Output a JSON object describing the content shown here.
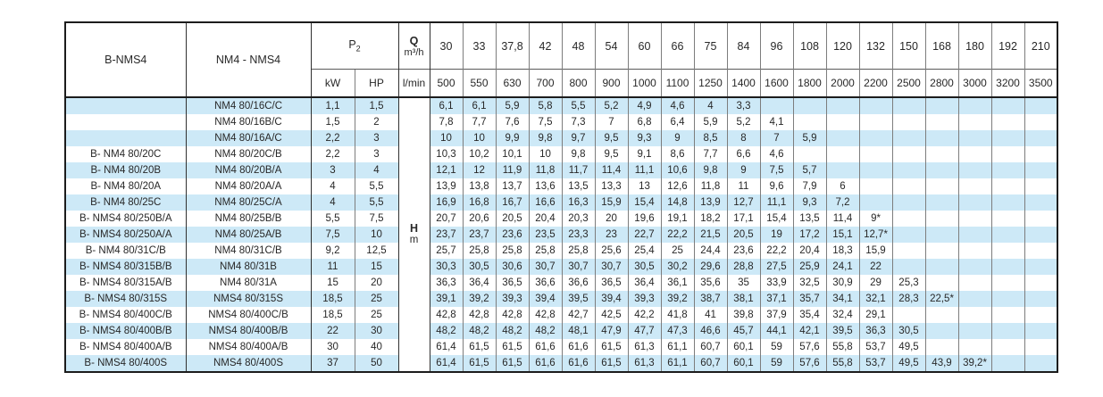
{
  "table": {
    "headers": {
      "col1": "B-NMS4",
      "col2": "NM4 - NMS4",
      "p2_base": "P",
      "p2_sub": "2",
      "kw": "kW",
      "hp": "HP",
      "q_symbol": "Q",
      "q_unit": "m³/h",
      "lmin": "l/min",
      "flow_m3h": [
        "30",
        "33",
        "37,8",
        "42",
        "48",
        "54",
        "60",
        "66",
        "75",
        "84",
        "96",
        "108",
        "120",
        "132",
        "150",
        "168",
        "180",
        "192",
        "210"
      ],
      "flow_lmin": [
        "500",
        "550",
        "630",
        "700",
        "800",
        "900",
        "1000",
        "1100",
        "1250",
        "1400",
        "1600",
        "1800",
        "2000",
        "2200",
        "2500",
        "2800",
        "3000",
        "3200",
        "3500"
      ]
    },
    "h_column": {
      "symbol": "H",
      "unit": "m"
    },
    "rows": [
      {
        "b_model": "",
        "model": "NM4 80/16C/C",
        "kw": "1,1",
        "hp": "1,5",
        "heads": [
          "6,1",
          "6,1",
          "5,9",
          "5,8",
          "5,5",
          "5,2",
          "4,9",
          "4,6",
          "4",
          "3,3",
          "",
          "",
          "",
          "",
          "",
          "",
          "",
          "",
          ""
        ]
      },
      {
        "b_model": "",
        "model": "NM4 80/16B/C",
        "kw": "1,5",
        "hp": "2",
        "heads": [
          "7,8",
          "7,7",
          "7,6",
          "7,5",
          "7,3",
          "7",
          "6,8",
          "6,4",
          "5,9",
          "5,2",
          "4,1",
          "",
          "",
          "",
          "",
          "",
          "",
          "",
          ""
        ]
      },
      {
        "b_model": "",
        "model": "NM4 80/16A/C",
        "kw": "2,2",
        "hp": "3",
        "heads": [
          "10",
          "10",
          "9,9",
          "9,8",
          "9,7",
          "9,5",
          "9,3",
          "9",
          "8,5",
          "8",
          "7",
          "5,9",
          "",
          "",
          "",
          "",
          "",
          "",
          ""
        ]
      },
      {
        "b_model": "B- NM4 80/20C",
        "model": "NM4 80/20C/B",
        "kw": "2,2",
        "hp": "3",
        "heads": [
          "10,3",
          "10,2",
          "10,1",
          "10",
          "9,8",
          "9,5",
          "9,1",
          "8,6",
          "7,7",
          "6,6",
          "4,6",
          "",
          "",
          "",
          "",
          "",
          "",
          "",
          ""
        ]
      },
      {
        "b_model": "B- NM4 80/20B",
        "model": "NM4 80/20B/A",
        "kw": "3",
        "hp": "4",
        "heads": [
          "12,1",
          "12",
          "11,9",
          "11,8",
          "11,7",
          "11,4",
          "11,1",
          "10,6",
          "9,8",
          "9",
          "7,5",
          "5,7",
          "",
          "",
          "",
          "",
          "",
          "",
          ""
        ]
      },
      {
        "b_model": "B- NM4 80/20A",
        "model": "NM4 80/20A/A",
        "kw": "4",
        "hp": "5,5",
        "heads": [
          "13,9",
          "13,8",
          "13,7",
          "13,6",
          "13,5",
          "13,3",
          "13",
          "12,6",
          "11,8",
          "11",
          "9,6",
          "7,9",
          "6",
          "",
          "",
          "",
          "",
          "",
          ""
        ]
      },
      {
        "b_model": "B- NM4 80/25C",
        "model": "NM4 80/25C/A",
        "kw": "4",
        "hp": "5,5",
        "heads": [
          "16,9",
          "16,8",
          "16,7",
          "16,6",
          "16,3",
          "15,9",
          "15,4",
          "14,8",
          "13,9",
          "12,7",
          "11,1",
          "9,3",
          "7,2",
          "",
          "",
          "",
          "",
          "",
          ""
        ]
      },
      {
        "b_model": "B- NMS4 80/250B/A",
        "model": "NM4 80/25B/B",
        "kw": "5,5",
        "hp": "7,5",
        "heads": [
          "20,7",
          "20,6",
          "20,5",
          "20,4",
          "20,3",
          "20",
          "19,6",
          "19,1",
          "18,2",
          "17,1",
          "15,4",
          "13,5",
          "11,4",
          "9*",
          "",
          "",
          "",
          "",
          ""
        ]
      },
      {
        "b_model": "B- NMS4 80/250A/A",
        "model": "NM4 80/25A/B",
        "kw": "7,5",
        "hp": "10",
        "heads": [
          "23,7",
          "23,7",
          "23,6",
          "23,5",
          "23,3",
          "23",
          "22,7",
          "22,2",
          "21,5",
          "20,5",
          "19",
          "17,2",
          "15,1",
          "12,7*",
          "",
          "",
          "",
          "",
          ""
        ]
      },
      {
        "b_model": "B- NM4 80/31C/B",
        "model": "NM4 80/31C/B",
        "kw": "9,2",
        "hp": "12,5",
        "heads": [
          "25,7",
          "25,8",
          "25,8",
          "25,8",
          "25,8",
          "25,6",
          "25,4",
          "25",
          "24,4",
          "23,6",
          "22,2",
          "20,4",
          "18,3",
          "15,9",
          "",
          "",
          "",
          "",
          ""
        ]
      },
      {
        "b_model": "B- NMS4 80/315B/B",
        "model": "NM4 80/31B",
        "kw": "11",
        "hp": "15",
        "heads": [
          "30,3",
          "30,5",
          "30,6",
          "30,7",
          "30,7",
          "30,7",
          "30,5",
          "30,2",
          "29,6",
          "28,8",
          "27,5",
          "25,9",
          "24,1",
          "22",
          "",
          "",
          "",
          "",
          ""
        ]
      },
      {
        "b_model": "B- NMS4 80/315A/B",
        "model": "NM4 80/31A",
        "kw": "15",
        "hp": "20",
        "heads": [
          "36,3",
          "36,4",
          "36,5",
          "36,6",
          "36,6",
          "36,5",
          "36,4",
          "36,1",
          "35,6",
          "35",
          "33,9",
          "32,5",
          "30,9",
          "29",
          "25,3",
          "",
          "",
          "",
          ""
        ]
      },
      {
        "b_model": "B- NMS4 80/315S",
        "model": "NMS4 80/315S",
        "kw": "18,5",
        "hp": "25",
        "heads": [
          "39,1",
          "39,2",
          "39,3",
          "39,4",
          "39,5",
          "39,4",
          "39,3",
          "39,2",
          "38,7",
          "38,1",
          "37,1",
          "35,7",
          "34,1",
          "32,1",
          "28,3",
          "22,5*",
          "",
          "",
          ""
        ]
      },
      {
        "b_model": "B- NMS4 80/400C/B",
        "model": "NMS4 80/400C/B",
        "kw": "18,5",
        "hp": "25",
        "heads": [
          "42,8",
          "42,8",
          "42,8",
          "42,8",
          "42,7",
          "42,5",
          "42,2",
          "41,8",
          "41",
          "39,8",
          "37,9",
          "35,4",
          "32,4",
          "29,1",
          "",
          "",
          "",
          "",
          ""
        ]
      },
      {
        "b_model": "B- NMS4 80/400B/B",
        "model": "NMS4 80/400B/B",
        "kw": "22",
        "hp": "30",
        "heads": [
          "48,2",
          "48,2",
          "48,2",
          "48,2",
          "48,1",
          "47,9",
          "47,7",
          "47,3",
          "46,6",
          "45,7",
          "44,1",
          "42,1",
          "39,5",
          "36,3",
          "30,5",
          "",
          "",
          "",
          ""
        ]
      },
      {
        "b_model": "B- NMS4 80/400A/B",
        "model": "NMS4 80/400A/B",
        "kw": "30",
        "hp": "40",
        "heads": [
          "61,4",
          "61,5",
          "61,5",
          "61,6",
          "61,6",
          "61,5",
          "61,3",
          "61,1",
          "60,7",
          "60,1",
          "59",
          "57,6",
          "55,8",
          "53,7",
          "49,5",
          "",
          "",
          "",
          ""
        ]
      },
      {
        "b_model": "B- NMS4 80/400S",
        "model": "NMS4 80/400S",
        "kw": "37",
        "hp": "50",
        "heads": [
          "61,4",
          "61,5",
          "61,5",
          "61,6",
          "61,6",
          "61,5",
          "61,3",
          "61,1",
          "60,7",
          "60,1",
          "59",
          "57,6",
          "55,8",
          "53,7",
          "49,5",
          "43,9",
          "39,2*",
          "",
          ""
        ]
      }
    ]
  },
  "colors": {
    "stripe_blue": "#cde9f7",
    "border_dark": "#1c1c1c",
    "border_gray": "#7d7d7d",
    "text": "#282828"
  }
}
